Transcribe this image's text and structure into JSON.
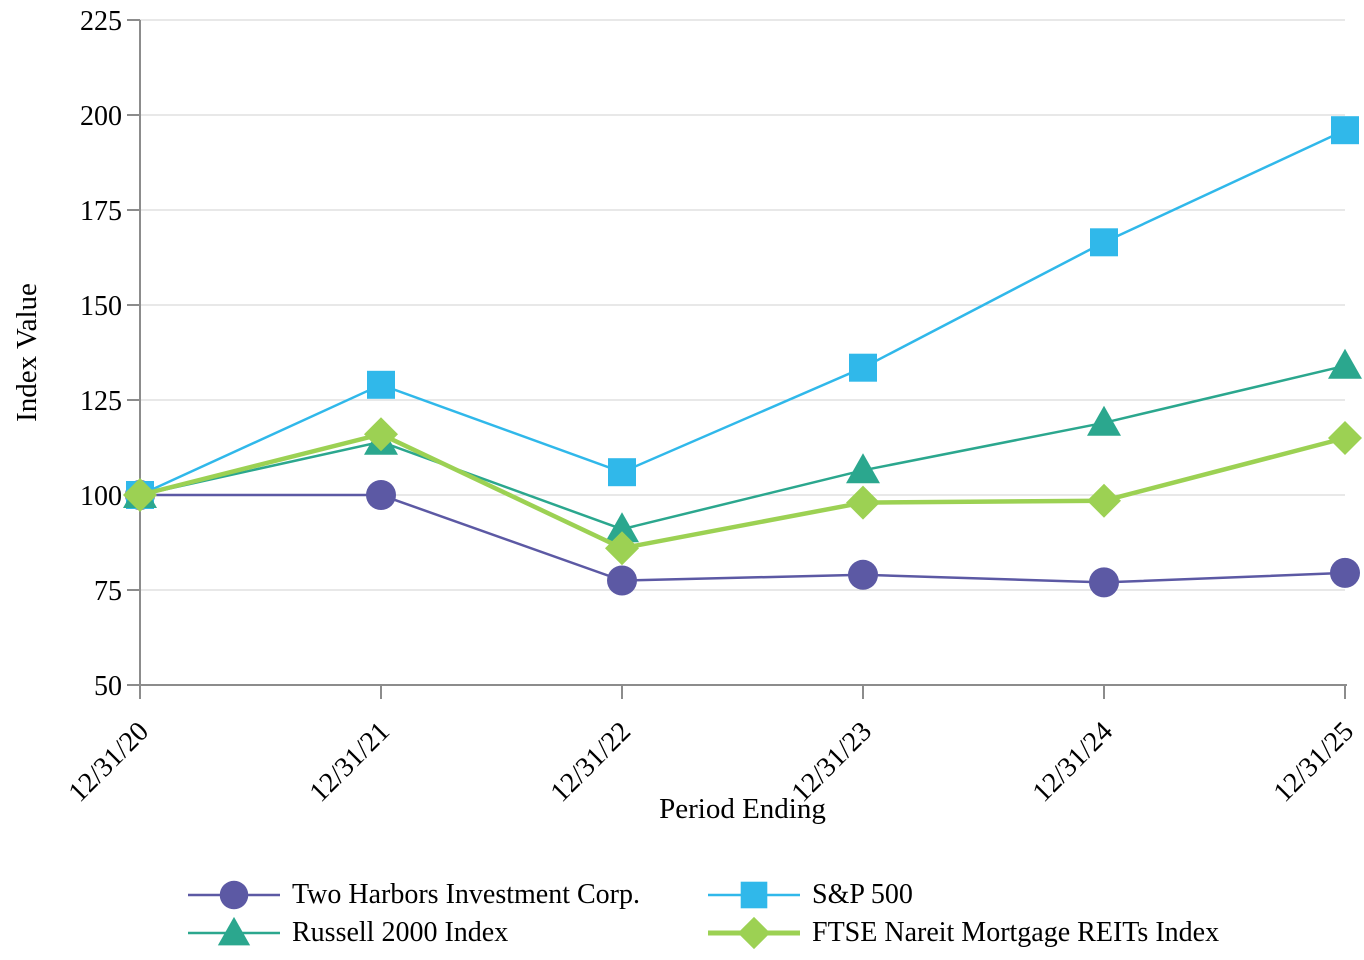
{
  "page": {
    "background": "#ffffff",
    "text_color": "#000000",
    "axis_color": "#8C8C8C",
    "gridline_color": "#D9D9D9"
  },
  "chart_data": {
    "type": "line",
    "title": "",
    "xlabel": "Period Ending",
    "ylabel": "Index Value",
    "x_categories": [
      "12/31/20",
      "12/31/21",
      "12/31/22",
      "12/31/23",
      "12/31/24",
      "12/31/25"
    ],
    "ylim": [
      50,
      225
    ],
    "yticks": [
      50,
      75,
      100,
      125,
      150,
      175,
      200,
      225
    ],
    "grid": true,
    "legend_position": "bottom",
    "series": [
      {
        "name": "Two Harbors Investment Corp.",
        "marker": "circle",
        "color": "#5C59A4",
        "line_width": 2.5,
        "values": [
          100,
          100,
          77.5,
          79,
          77,
          79.5
        ]
      },
      {
        "name": "S&P 500",
        "marker": "square",
        "color": "#30B8EA",
        "line_width": 2.5,
        "values": [
          100,
          129,
          106,
          133.5,
          166.5,
          196
        ]
      },
      {
        "name": "Russell 2000 Index",
        "marker": "triangle",
        "color": "#2BA78E",
        "line_width": 2.5,
        "values": [
          100,
          114,
          91,
          106.5,
          119,
          134
        ]
      },
      {
        "name": "FTSE Nareit Mortgage REITs Index",
        "marker": "diamond",
        "color": "#9CD153",
        "line_width": 4.5,
        "values": [
          100,
          116,
          86,
          98,
          98.5,
          115
        ]
      }
    ]
  }
}
